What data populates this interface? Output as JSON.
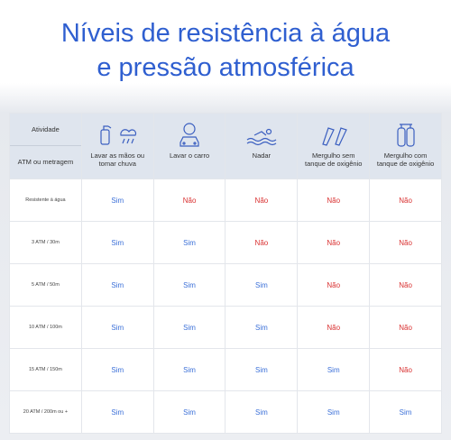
{
  "title": {
    "line1": "Níveis de resistência à água",
    "line2": "e pressão atmosférica"
  },
  "table": {
    "corner": {
      "top": "Atividade",
      "bottom": "ATM ou metragem"
    },
    "columns": [
      "Lavar as mãos ou tomar chuva",
      "Lavar o carro",
      "Nadar",
      "Mergulho sem tanque de oxigênio",
      "Mergulho com tanque de oxigênio"
    ],
    "rows": [
      {
        "label": "Resistente à água",
        "cells": [
          "Sim",
          "Não",
          "Não",
          "Não",
          "Não"
        ]
      },
      {
        "label": "3 ATM / 30m",
        "cells": [
          "Sim",
          "Sim",
          "Não",
          "Não",
          "Não"
        ]
      },
      {
        "label": "5 ATM / 50m",
        "cells": [
          "Sim",
          "Sim",
          "Sim",
          "Não",
          "Não"
        ]
      },
      {
        "label": "10 ATM / 100m",
        "cells": [
          "Sim",
          "Sim",
          "Sim",
          "Não",
          "Não"
        ]
      },
      {
        "label": "15 ATM / 150m",
        "cells": [
          "Sim",
          "Sim",
          "Sim",
          "Sim",
          "Não"
        ]
      },
      {
        "label": "20 ATM / 200m ou +",
        "cells": [
          "Sim",
          "Sim",
          "Sim",
          "Sim",
          "Sim"
        ]
      }
    ]
  }
}
